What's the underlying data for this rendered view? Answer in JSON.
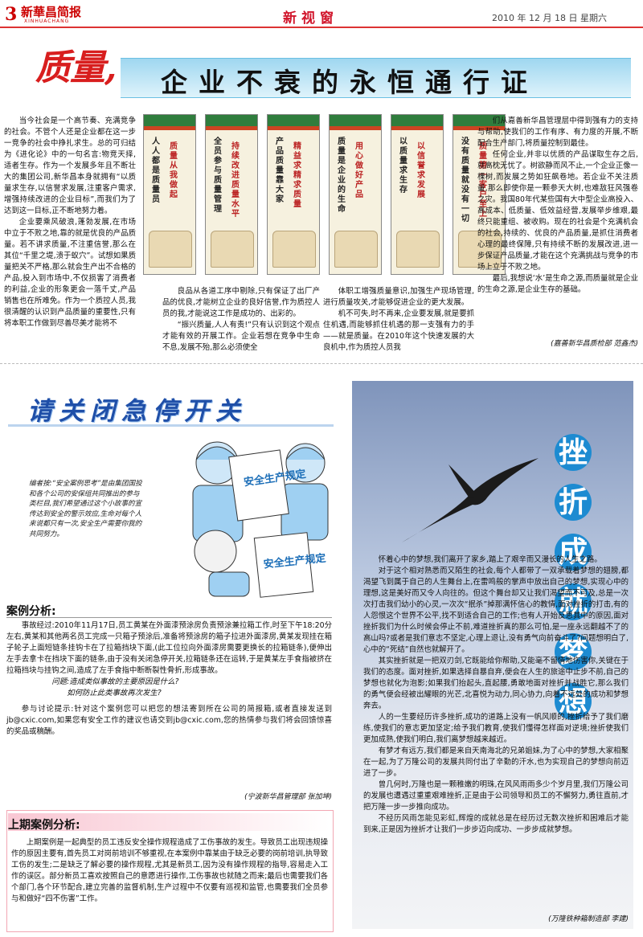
{
  "header": {
    "page_number": "3",
    "paper_name": "新華昌简报",
    "paper_pinyin": "XINHUACHANG",
    "section": "新视窗",
    "date": "2010 年 12 月 18 日  星期六"
  },
  "headline": {
    "red": "质量,",
    "black": "企业不衰的永恒通行证"
  },
  "posters": [
    {
      "a": "人人都是质量员",
      "b": "质量从我做起"
    },
    {
      "a": "全员参与质量管理",
      "b": "持续改进质量水平"
    },
    {
      "a": "产品质量靠大家",
      "b": "精益求精求质量"
    },
    {
      "a": "质量是企业的生命",
      "b": "用心做好产品"
    },
    {
      "a": "以质量求生存",
      "b": "以信誉求发展"
    },
    {
      "a": "没有质量就没有一切",
      "b": "质量第一客户至上"
    }
  ],
  "article1": {
    "col1": [
      "当今社会是一个高节奏、充满竞争的社会。不管个人还是企业都在这一步一竞争的社会中挣扎求生。总的可归结为《进化论》中的一句名言:物竞天择,适者生存。作为一个发展多年且不断壮大的集团公司,新华昌本身就拥有“以质量求生存,以信誉求发展,注重客户需求,增强持续改进的企业目标”,而我们为了达到这一目标,正不断地努力着。",
      "企业要乘风破浪,蓬勃发展,在市场中立于不败之地,靠的就是优良的产品质量。若不讲求质量,不注重信誉,那么在其位“千里之堤,溃于蚁穴”。试想如果质量把关不严格,那么就会生产出不合格的产品,投入到市场中,不仅损害了消费者的利益,企业的形象更会一落千丈,产品销售也在所难免。作为一个质控人员,我很清醒的认识到产品质量的重要性,只有将本职工作做到尽善尽美才能将不"
    ],
    "col2": [
      "良品从各道工序中剔除,只有保证了出厂产品的优良,才能树立企业的良好信誉,作为质控人员的我,才能说这工作是成功的、出彩的。",
      "“振兴质量,人人有责!”只有认识到这个观点才能有效的开展工作。企业若想在竞争中生命不息,发展不殆,那么必须使全"
    ],
    "col3": [
      "体职工增强质量意识,加强生产现场管理,进行质量攻关,才能够促进企业的更大发展。",
      "机不可失,时不再来,企业要发展,就是要抓住机遇,而能够抓住机遇的那一支强有力的手——就是质量。在2010年这个快速发展的大良机中,作为质控人员我"
    ],
    "col4": [
      "们从嘉善新华昌管理层中得到强有力的支持与帮助,使我们的工作有序、有力度的开展,不断配合生产部门,将质量控制到最佳。",
      "任何企业,并非以优质的产品谋取生存之后,就高枕无忧了。树欲静而风不止,一个企业正像一棵树,而发展之势如狂飙卷地。若企业不关注质量,那么即使你是一颗参天大树,也难敌狂风强卷之灾。我国80年代某些国有大中型企业高投入、高成本、低质量、低效益经营,发展举步维艰,最终只能重组、被收购。现在的社会是个充满机会的社会,持续的、优良的产品质量,是抓住消费者心理的最终保障,只有持续不断的发展改进,进一步保证产品质量,才能在这个充满挑战与竞争的市场上立于不败之地。",
      "最后,我想说‘水’是生命之源,而质量就是企业的生命之源,是企业生存的基础。"
    ],
    "byline": "(嘉善新华昌质检部  范鑫杰)"
  },
  "safety": {
    "title": "请关闭急停开关",
    "editor_note": "编者按:“安全案例思考”是由集团国投和各个公司的安保组共同推出的参与类栏目,我们希望通过这个小故事的宣传达到安全的警示效应,生命对每个人来说都只有一次,安全生产需要你我的共同努力。",
    "sign_text": "安全生产规定",
    "case_heading": "案例分析:",
    "case_paras": [
      "事故经过:2010年11月17日,员工黄某在外面漆预涂房负责预涂兼拉箱工作,时至下午18:20分左右,黄某和其他两名员工完成一只箱子预涂后,准备将预涂房的箱子拉进外面漆房,黄某发现挂在箱子轮子上面短链条挂钩卡在了拉箱挡块下面,(此工位拉向外面漆房需要更换长的拉箱链条),便伸出左手去拿卡在挡块下面的链条,由于没有关闭急停开关,拉箱链条还在运转,于是黄某左手食指被挤在拉箱挡块与挂钩之间,造成了左手食指中断断裂性骨折,形成事故。",
      "问题:造成类似事故的主要原因是什么?",
      "如何防止此类事故再次发生?",
      "参与讨论提示:针对这个案例您可以把您的想法寄到所在公司的简报箱,或者直接发送到jb@cxic.com,如果您有安全工作的建议也请交到jb@cxic.com,您的热情参与我们将会回馈惊喜的奖品或稿酬。"
    ],
    "case_byline": "(宁波新华昌管理部  张加坤)",
    "prev_heading": "上期案例分析:",
    "prev_text": "上期案例是一起典型的员工违反安全操作规程造成了工伤事故的发生。导致员工出现违规操作的原因主要有,首先员工对岗前培训不够重视,在本案例中靠某由于缺乏必要的岗前培训,执导致工伤的发生;二是缺乏了解必要的操作规程,尤其是新员工,因为没有操作规程的指导,容易走入工作的误区。部分新员工喜欢按照自己的意愿进行操作,工伤事故也就随之而来;最后也需要我们各个部门,各个环节配合,建立完善的监督机制,生产过程中不仅要有巡视和监管,也需要我们全员参与和做好“四不伤害”工作。"
  },
  "essay": {
    "title_chars": [
      "挫",
      "折",
      "成",
      "就",
      "梦",
      "想"
    ],
    "paras": [
      "怀着心中的梦想,我们离开了家乡,踏上了艰辛而又漫长的人生之路。",
      "对于这个相对熟悉而又陌生的社会,每个人都带了一双承载着梦想的翅膀,都渴望飞到属于自己的人生舞台上,在雷鸣般的掌声中放出自己的梦想,实现心中的理想,这是美好而又令人向往的。但这个舞台却又让我们渴望而不可及,总是一次次打击我们幼小的心灵,一次次“抿杀”掉那满怀信心的教情,面对挫折的打击,有的人怨恨这个世界不公平,找不到适合自己的工作;也有人开始反思其中的原因,面对挫折我们为什么时候会停止不前,难道挫折真的那么可怕,是一座永远翻越不了的高山吗?或者是我们意志不坚定,心理上退让,没有勇气向前奋斗了?问题想明白了,心中的“死结”自然也就解开了。",
      "其实挫折就是一把双刃剑,它既能给你帮助,又能毫不留情地伤害你,关键在于我们的态度。面对挫折,如果选择自暴自弃,便会在人生的旅途中止步不前,自己的梦想也就化为泡影;如果我们抬起头,直起腰,勇敢地面对挫折并战胜它,那么我们的勇气便会经被出耀眼的光芒,北喜悦为动力,同心协力,向着不远处的成功和梦想奔去。",
      "人的一生要经历许多挫折,成功的道路上没有一帆风顺的,挫折给予了我们磨练,使我们的意志更加坚定;给予我们教育,使我们懂得怎样面对逆境;挫折使我们更加成熟,使我们明白,我们离梦想越来越近。",
      "有梦才有远方,我们都是来自天南海北的兄弟姐妹,为了心中的梦想,大家相聚在一起,为了万隆公司的发展共同付出了辛勤的汗水,也为实现自己的梦想向前迈进了一步。",
      "曾几何时,万隆也是一颗稚嫩的明珠,在风风雨雨多少个岁月里,我们万隆公司的发展也遭遇过重重艰难挫折,正是由于公司领导和员工的不懈努力,勇往直前,才把万隆一步一步推向成功。",
      "不经历风雨怎能见彩虹,辉煌的成就总是在经历过无数次挫折和困难后才能到来,正是因为挫折才让我们一步步迈向成功、一步步成就梦想。"
    ],
    "byline": "(万隆铁种箱制造部  李建)"
  }
}
